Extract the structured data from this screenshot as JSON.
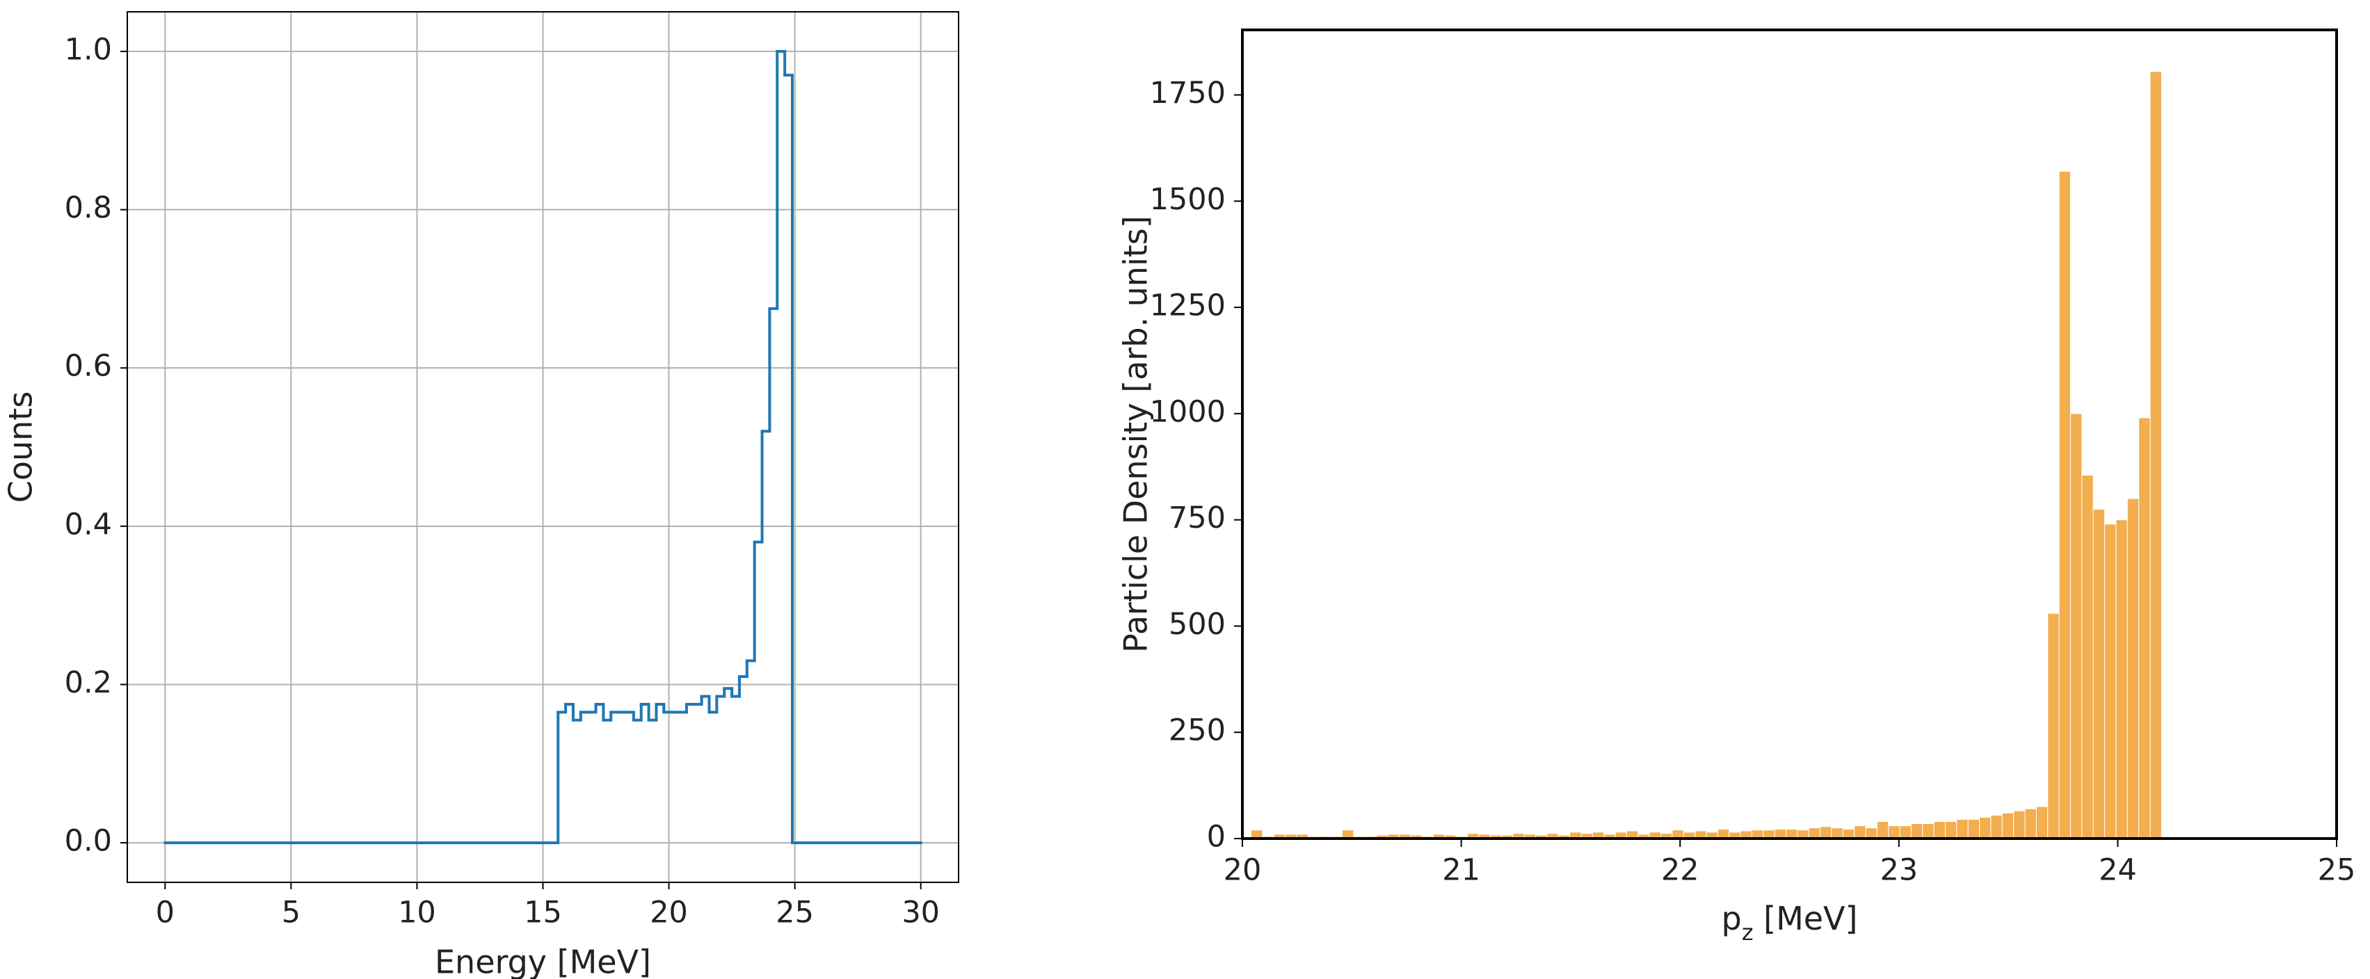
{
  "chart_data": [
    {
      "type": "histogram",
      "histtype": "step",
      "color": "#1f77b4",
      "grid": true,
      "xlabel": "Energy [MeV]",
      "ylabel": "Counts",
      "xlim": [
        -1.5,
        31.5
      ],
      "ylim": [
        -0.05,
        1.05
      ],
      "xticks": [
        0,
        5,
        10,
        15,
        20,
        25,
        30
      ],
      "yticks": [
        {
          "value": 0,
          "label": "0.0"
        },
        {
          "value": 0.2,
          "label": "0.2"
        },
        {
          "value": 0.4,
          "label": "0.4"
        },
        {
          "value": 0.6,
          "label": "0.6"
        },
        {
          "value": 0.8,
          "label": "0.8"
        },
        {
          "value": 1,
          "label": "1.0"
        }
      ],
      "bins": [
        0,
        15.6,
        15.9,
        16.2,
        16.5,
        16.8,
        17.1,
        17.4,
        17.7,
        18.0,
        18.3,
        18.6,
        18.9,
        19.2,
        19.5,
        19.8,
        20.1,
        20.4,
        20.7,
        21.0,
        21.3,
        21.6,
        21.9,
        22.2,
        22.5,
        22.8,
        23.1,
        23.4,
        23.7,
        24.0,
        24.3,
        24.6,
        24.9,
        30
      ],
      "counts": [
        0,
        0.165,
        0.175,
        0.155,
        0.165,
        0.165,
        0.175,
        0.155,
        0.165,
        0.165,
        0.165,
        0.155,
        0.175,
        0.155,
        0.175,
        0.165,
        0.165,
        0.165,
        0.175,
        0.175,
        0.185,
        0.165,
        0.185,
        0.195,
        0.185,
        0.21,
        0.23,
        0.38,
        0.52,
        0.675,
        1.0,
        0.97,
        0
      ]
    },
    {
      "type": "histogram",
      "histtype": "bar",
      "color": "#f0a030",
      "grid": false,
      "xlabel": [
        "p",
        "z",
        " [MeV]"
      ],
      "ylabel": "Particle Density [arb. units]",
      "xlim": [
        20,
        25
      ],
      "ylim": [
        0,
        1903
      ],
      "xticks": [
        20,
        21,
        22,
        23,
        24,
        25
      ],
      "yticks": [
        0,
        250,
        500,
        750,
        1000,
        1250,
        1500,
        1750
      ],
      "bins": [
        20.04,
        20.092,
        20.144,
        20.196,
        20.248,
        20.3,
        20.352,
        20.404,
        20.456,
        20.508,
        20.56,
        20.612,
        20.664,
        20.716,
        20.768,
        20.82,
        20.872,
        20.924,
        20.976,
        21.028,
        21.08,
        21.132,
        21.184,
        21.236,
        21.288,
        21.34,
        21.392,
        21.444,
        21.496,
        21.548,
        21.6,
        21.652,
        21.704,
        21.756,
        21.808,
        21.86,
        21.912,
        21.964,
        22.016,
        22.068,
        22.12,
        22.172,
        22.224,
        22.276,
        22.328,
        22.38,
        22.432,
        22.484,
        22.536,
        22.588,
        22.64,
        22.692,
        22.744,
        22.796,
        22.848,
        22.9,
        22.952,
        23.004,
        23.056,
        23.108,
        23.16,
        23.212,
        23.264,
        23.316,
        23.368,
        23.42,
        23.472,
        23.524,
        23.576,
        23.628,
        23.68,
        23.732,
        23.784,
        23.836,
        23.888,
        23.94,
        23.992,
        24.044,
        24.096,
        24.148,
        24.2
      ],
      "counts": [
        20,
        5,
        10,
        10,
        10,
        5,
        5,
        5,
        20,
        5,
        5,
        8,
        10,
        10,
        8,
        5,
        10,
        8,
        5,
        12,
        10,
        8,
        8,
        12,
        10,
        8,
        12,
        8,
        15,
        12,
        15,
        10,
        15,
        18,
        10,
        15,
        12,
        20,
        15,
        18,
        15,
        22,
        15,
        18,
        20,
        20,
        22,
        22,
        20,
        25,
        28,
        25,
        22,
        30,
        25,
        40,
        30,
        30,
        35,
        35,
        40,
        40,
        45,
        45,
        50,
        55,
        60,
        65,
        70,
        75,
        530,
        1570,
        1000,
        855,
        775,
        740,
        750,
        800,
        990,
        1805
      ]
    }
  ]
}
